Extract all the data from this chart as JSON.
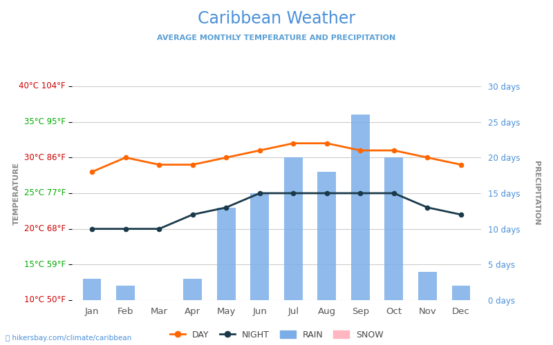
{
  "title": "Caribbean Weather",
  "subtitle": "AVERAGE MONTHLY TEMPERATURE AND PRECIPITATION",
  "months": [
    "Jan",
    "Feb",
    "Mar",
    "Apr",
    "May",
    "Jun",
    "Jul",
    "Aug",
    "Sep",
    "Oct",
    "Nov",
    "Dec"
  ],
  "day_temps": [
    28,
    30,
    29,
    29,
    30,
    31,
    32,
    32,
    31,
    31,
    30,
    29
  ],
  "night_temps": [
    20,
    20,
    20,
    22,
    23,
    25,
    25,
    25,
    25,
    25,
    23,
    22
  ],
  "rain_days": [
    3,
    2,
    0,
    3,
    13,
    15,
    20,
    18,
    26,
    20,
    4,
    2
  ],
  "snow_days": [
    0,
    0,
    0,
    0,
    0,
    0,
    0,
    0,
    0,
    0,
    0,
    0
  ],
  "temp_min": 10,
  "temp_max": 40,
  "precip_min": 0,
  "precip_max": 30,
  "yticks_temp": [
    10,
    15,
    20,
    25,
    30,
    35,
    40
  ],
  "yticks_temp_labels": [
    "10°C 50°F",
    "15°C 59°F",
    "20°C 68°F",
    "25°C 77°F",
    "30°C 86°F",
    "35°C 95°F",
    "40°C 104°F"
  ],
  "yticks_temp_colors": [
    "#cc0000",
    "#00aa00",
    "#cc0000",
    "#00aa00",
    "#cc0000",
    "#00aa00",
    "#cc0000"
  ],
  "yticks_precip": [
    0,
    5,
    10,
    15,
    20,
    25,
    30
  ],
  "yticks_precip_labels": [
    "0 days",
    "5 days",
    "10 days",
    "15 days",
    "20 days",
    "25 days",
    "30 days"
  ],
  "bar_color": "#7baee8",
  "day_color": "#ff6600",
  "night_color": "#1a3a4a",
  "title_color": "#4a90d9",
  "subtitle_color": "#5a9fd4",
  "right_label_color": "#4a90d9",
  "background_color": "#ffffff",
  "grid_color": "#cccccc",
  "watermark": "hikersbay.com/climate/caribbean",
  "temp_axis_label_color": "#888888",
  "precip_axis_label_color": "#888888",
  "month_label_color": "#555555"
}
